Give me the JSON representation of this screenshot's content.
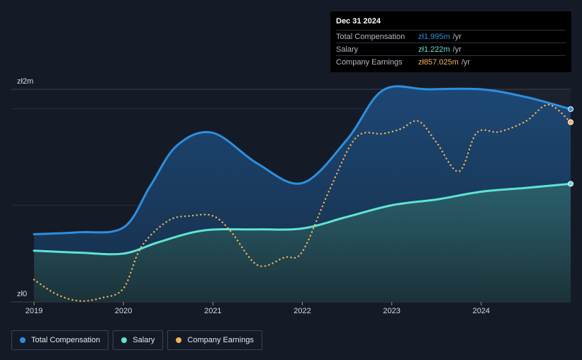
{
  "chart_data": {
    "type": "area",
    "currency_prefix": "zł",
    "x_ticks": [
      "2019",
      "2020",
      "2021",
      "2022",
      "2023",
      "2024"
    ],
    "y_ticks": [
      "zł0",
      "zł2m"
    ],
    "ylim": [
      0,
      2.2
    ],
    "grid": true,
    "legend_position": "bottom-left",
    "series": [
      {
        "name": "Total Compensation",
        "color": "#2d8fdf",
        "style": "solid",
        "points": [
          [
            2019.0,
            0.7
          ],
          [
            2019.5,
            0.72
          ],
          [
            2020.0,
            0.77
          ],
          [
            2020.3,
            1.2
          ],
          [
            2020.6,
            1.62
          ],
          [
            2021.0,
            1.75
          ],
          [
            2021.5,
            1.43
          ],
          [
            2022.0,
            1.23
          ],
          [
            2022.5,
            1.68
          ],
          [
            2022.9,
            2.19
          ],
          [
            2023.4,
            2.2
          ],
          [
            2024.0,
            2.2
          ],
          [
            2024.5,
            2.12
          ],
          [
            2025.0,
            1.995
          ]
        ]
      },
      {
        "name": "Salary",
        "color": "#5fe3d3",
        "style": "solid",
        "points": [
          [
            2019.0,
            0.53
          ],
          [
            2019.5,
            0.51
          ],
          [
            2020.0,
            0.5
          ],
          [
            2020.4,
            0.62
          ],
          [
            2020.9,
            0.74
          ],
          [
            2021.5,
            0.75
          ],
          [
            2022.0,
            0.76
          ],
          [
            2022.5,
            0.88
          ],
          [
            2023.0,
            1.0
          ],
          [
            2023.5,
            1.06
          ],
          [
            2024.0,
            1.14
          ],
          [
            2024.5,
            1.18
          ],
          [
            2025.0,
            1.222
          ]
        ]
      },
      {
        "name": "Company Earnings",
        "color": "#f0b45a",
        "style": "dotted",
        "points": [
          [
            2019.0,
            0.23
          ],
          [
            2019.25,
            0.08
          ],
          [
            2019.5,
            0.01
          ],
          [
            2019.75,
            0.04
          ],
          [
            2020.0,
            0.14
          ],
          [
            2020.2,
            0.57
          ],
          [
            2020.5,
            0.84
          ],
          [
            2020.75,
            0.89
          ],
          [
            2021.0,
            0.89
          ],
          [
            2021.2,
            0.73
          ],
          [
            2021.5,
            0.38
          ],
          [
            2021.8,
            0.46
          ],
          [
            2022.0,
            0.52
          ],
          [
            2022.3,
            1.15
          ],
          [
            2022.6,
            1.7
          ],
          [
            2022.9,
            1.74
          ],
          [
            2023.1,
            1.79
          ],
          [
            2023.3,
            1.87
          ],
          [
            2023.5,
            1.65
          ],
          [
            2023.75,
            1.35
          ],
          [
            2023.95,
            1.75
          ],
          [
            2024.2,
            1.76
          ],
          [
            2024.5,
            1.87
          ],
          [
            2024.75,
            2.04
          ],
          [
            2025.0,
            1.86
          ]
        ]
      }
    ]
  },
  "tooltip": {
    "date": "Dec 31 2024",
    "rows": [
      {
        "label": "Total Compensation",
        "value": "zł1.995m",
        "unit": "/yr",
        "color": "#2d8fdf"
      },
      {
        "label": "Salary",
        "value": "zł1.222m",
        "unit": "/yr",
        "color": "#5fe3d3"
      },
      {
        "label": "Company Earnings",
        "value": "zł857.025m",
        "unit": "/yr",
        "color": "#f0b45a"
      }
    ]
  },
  "legend": [
    {
      "label": "Total Compensation",
      "color": "#2d8fdf"
    },
    {
      "label": "Salary",
      "color": "#5fe3d3"
    },
    {
      "label": "Company Earnings",
      "color": "#f0b45a"
    }
  ]
}
